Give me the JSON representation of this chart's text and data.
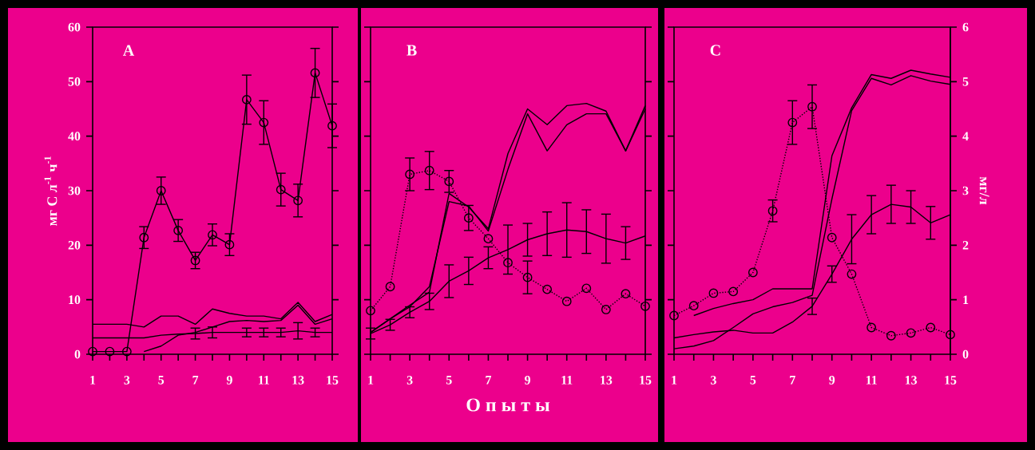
{
  "chart_data": [
    {
      "type": "line",
      "title": "A",
      "ylabel": "мг С л$^{-1}$ ч$^{-1}$",
      "x": [
        1,
        2,
        3,
        4,
        5,
        6,
        7,
        8,
        9,
        10,
        11,
        12,
        13,
        14,
        15
      ],
      "xlim": [
        1,
        15
      ],
      "ylim": [
        0,
        60
      ],
      "xticks": [
        1,
        {
          "value": 2,
          "label": null
        },
        3,
        {
          "value": 4,
          "label": null
        },
        5,
        {
          "value": 6,
          "label": null
        },
        7,
        {
          "value": 8,
          "label": null
        },
        9,
        {
          "value": 10,
          "label": null
        },
        11,
        {
          "value": 12,
          "label": null
        },
        13,
        {
          "value": 14,
          "label": null
        },
        15
      ],
      "yticks": [
        0,
        10,
        20,
        30,
        40,
        50,
        60
      ],
      "series": [
        {
          "color": "#000000",
          "marker": "circle",
          "line_style": "solid",
          "values": [
            0.5,
            0.5,
            0.5,
            21.4,
            30,
            22.7,
            17.2,
            21.9,
            20.1,
            46.7,
            42.5,
            30.2,
            28.2,
            51.6,
            41.9
          ],
          "errors": [
            null,
            null,
            null,
            2,
            2.5,
            2,
            1.5,
            2,
            2,
            4.5,
            4,
            3,
            3,
            4.5,
            4
          ]
        },
        {
          "color": "#000000",
          "marker": "none",
          "line_style": "solid",
          "values": [
            5.5,
            5.5,
            5.5,
            5,
            7,
            7,
            5.5,
            8.3,
            7.5,
            7,
            7,
            6.5,
            9.5,
            6,
            7.3
          ]
        },
        {
          "color": "#000000",
          "marker": "none",
          "line_style": "solid",
          "values": [
            null,
            null,
            null,
            0.5,
            1.5,
            3.5,
            4,
            5,
            6,
            6.2,
            6,
            6.2,
            9,
            5.5,
            6.5
          ]
        },
        {
          "color": "#000000",
          "marker": "none",
          "line_style": "solid",
          "values": [
            3,
            3,
            3,
            3,
            3.5,
            3.7,
            3.8,
            4,
            4,
            4,
            4,
            4,
            4.3,
            4,
            4
          ],
          "errors": [
            null,
            null,
            null,
            null,
            null,
            null,
            1,
            1,
            null,
            0.8,
            0.8,
            0.8,
            1.5,
            0.8,
            null
          ]
        }
      ]
    },
    {
      "type": "line",
      "title": "B",
      "xlabel": "О п ы т ы",
      "tick_labels": "x",
      "x": [
        1,
        2,
        3,
        4,
        5,
        6,
        7,
        8,
        9,
        10,
        11,
        12,
        13,
        14,
        15
      ],
      "xlim": [
        1,
        15
      ],
      "ylim": [
        0,
        60
      ],
      "xticks": [
        1,
        {
          "value": 2,
          "label": null
        },
        3,
        {
          "value": 4,
          "label": null
        },
        5,
        {
          "value": 6,
          "label": null
        },
        7,
        {
          "value": 8,
          "label": null
        },
        9,
        {
          "value": 10,
          "label": null
        },
        11,
        {
          "value": 12,
          "label": null
        },
        13,
        {
          "value": 14,
          "label": null
        },
        15
      ],
      "yticks": [
        0,
        10,
        20,
        30,
        40,
        50,
        60
      ],
      "series": [
        {
          "color": "#000000",
          "marker": "circle",
          "line_style": "dotted",
          "values": [
            8,
            12.4,
            33,
            33.7,
            31.7,
            25,
            21.2,
            16.8,
            14.1,
            11.9,
            9.7,
            12.1,
            8.2,
            11.1,
            8.8
          ],
          "errors": [
            null,
            null,
            3,
            3.5,
            2,
            2.3,
            null,
            null,
            3,
            null,
            null,
            null,
            null,
            null,
            null
          ]
        },
        {
          "color": "#000000",
          "marker": "none",
          "line_style": "solid",
          "values": [
            3.8,
            5.4,
            7.7,
            9.7,
            13.4,
            15.3,
            17.7,
            19.2,
            21,
            22.1,
            22.8,
            22.5,
            21.2,
            20.4,
            21.7
          ],
          "errors": [
            1,
            1,
            1,
            1.5,
            3,
            2.5,
            2,
            4.5,
            3,
            4,
            5,
            4,
            4.5,
            3,
            null
          ]
        },
        {
          "color": "#000000",
          "marker": "none",
          "line_style": "solid",
          "values": [
            4,
            6.5,
            9,
            11.4,
            29.5,
            27,
            23,
            36.8,
            45,
            42.1,
            45.6,
            46,
            44.6,
            37.3,
            45.6
          ]
        },
        {
          "color": "#000000",
          "marker": "none",
          "line_style": "solid",
          "values": [
            4,
            6.5,
            8.7,
            12.4,
            28,
            27.2,
            22.6,
            33.9,
            44.1,
            37.3,
            42.1,
            44.1,
            44.1,
            37.3,
            45
          ]
        }
      ]
    },
    {
      "type": "line",
      "title": "C",
      "y2label": "мг/л",
      "x": [
        1,
        2,
        3,
        4,
        5,
        6,
        7,
        8,
        9,
        10,
        11,
        12,
        13,
        14,
        15
      ],
      "xlim": [
        1,
        15
      ],
      "y2lim": [
        0,
        6
      ],
      "xticks": [
        1,
        {
          "value": 2,
          "label": null
        },
        3,
        {
          "value": 4,
          "label": null
        },
        5,
        {
          "value": 6,
          "label": null
        },
        7,
        {
          "value": 8,
          "label": null
        },
        9,
        {
          "value": 10,
          "label": null
        },
        11,
        {
          "value": 12,
          "label": null
        },
        13,
        {
          "value": 14,
          "label": null
        },
        15
      ],
      "y2ticks": [
        0,
        1,
        2,
        3,
        4,
        5,
        6
      ],
      "series": [
        {
          "color": "#000000",
          "axis": "y2",
          "marker": "circle",
          "line_style": "dotted",
          "values": [
            0.71,
            0.89,
            1.12,
            1.15,
            1.5,
            2.63,
            4.25,
            4.54,
            2.14,
            1.47,
            0.49,
            0.34,
            0.39,
            0.49,
            0.36
          ],
          "errors": [
            null,
            null,
            null,
            null,
            null,
            0.2,
            0.4,
            0.4,
            null,
            null,
            null,
            null,
            null,
            null,
            null
          ]
        },
        {
          "color": "#000000",
          "axis": "y2",
          "marker": "none",
          "line_style": "solid",
          "values": [
            0.3,
            0.36,
            0.41,
            0.44,
            0.39,
            0.39,
            0.59,
            0.88,
            1.47,
            2.11,
            2.56,
            2.75,
            2.7,
            2.41,
            2.56
          ],
          "errors": [
            null,
            null,
            null,
            null,
            null,
            null,
            null,
            0.15,
            0.15,
            0.45,
            0.35,
            0.35,
            0.3,
            0.3,
            null
          ]
        },
        {
          "color": "#000000",
          "axis": "y2",
          "marker": "none",
          "line_style": "solid",
          "values": [
            null,
            0.71,
            0.84,
            0.93,
            1.0,
            1.2,
            1.2,
            1.2,
            3.64,
            4.52,
            5.13,
            5.06,
            5.21,
            5.14,
            5.08
          ]
        },
        {
          "color": "#000000",
          "axis": "y2",
          "marker": "none",
          "line_style": "solid",
          "values": [
            0.1,
            0.15,
            0.25,
            0.49,
            0.74,
            0.87,
            0.95,
            1.08,
            2.85,
            4.47,
            5.06,
            4.94,
            5.11,
            5.01,
            4.95
          ]
        }
      ]
    }
  ]
}
